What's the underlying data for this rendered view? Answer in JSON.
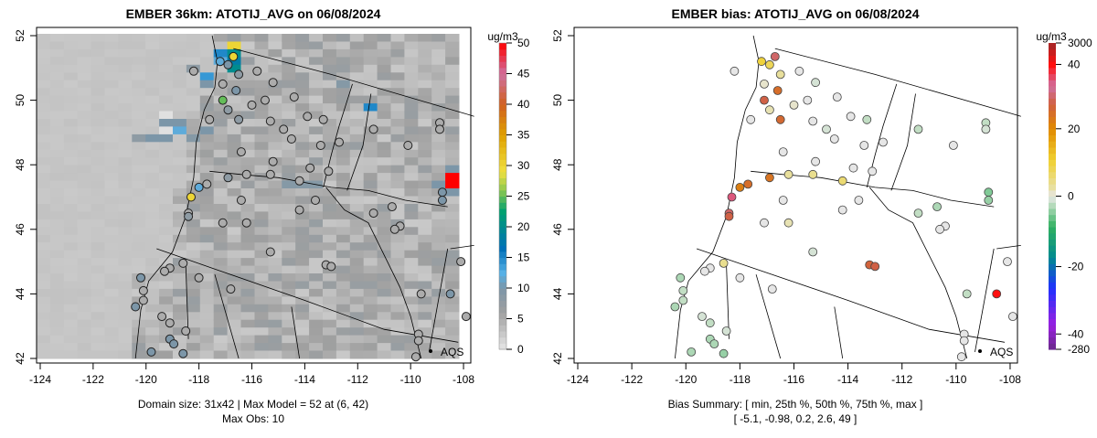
{
  "chart_data": [
    {
      "type": "heatmap",
      "title": "EMBER 36km: ATOTIJ_AVG on 06/08/2024",
      "xlim": [
        -124.5,
        -107.8
      ],
      "ylim": [
        41.8,
        52.2
      ],
      "x_ticks": [
        "-124",
        "-122",
        "-120",
        "-118",
        "-116",
        "-114",
        "-112",
        "-110",
        "-108"
      ],
      "y_ticks": [
        "42",
        "44",
        "46",
        "48",
        "50",
        "52"
      ],
      "colorbar": {
        "unit": "ug/m3",
        "range": [
          0,
          50
        ],
        "ticks": [
          "0",
          "5",
          "10",
          "15",
          "20",
          "25",
          "30",
          "35",
          "40",
          "45",
          "50"
        ]
      },
      "legend": {
        "label": "AQS"
      },
      "footer": [
        "Domain size: 31x42 | Max Model = 52 at (6, 42)",
        "Max Obs: 10"
      ]
    },
    {
      "type": "scatter",
      "title": "EMBER bias: ATOTIJ_AVG on 06/08/2024",
      "xlim": [
        -124.5,
        -107.8
      ],
      "ylim": [
        41.8,
        52.2
      ],
      "x_ticks": [
        "-124",
        "-122",
        "-120",
        "-118",
        "-116",
        "-114",
        "-112",
        "-110",
        "-108"
      ],
      "y_ticks": [
        "42",
        "44",
        "46",
        "48",
        "50",
        "52"
      ],
      "colorbar": {
        "unit": "ug/m3",
        "ticks": [
          "-280",
          "-40",
          "-20",
          "0",
          "20",
          "40",
          "3000"
        ]
      },
      "legend": {
        "label": "AQS"
      },
      "footer": [
        "Bias Summary: [ min, 25th %, 50th %, 75th %, max ]",
        "[ -5.1,   -0.98,   0.2,   2.6,   49 ]"
      ]
    }
  ],
  "stations": [
    [
      -116.7,
      51.35,
      30,
      30
    ],
    [
      -116.9,
      51.1,
      10,
      8
    ],
    [
      -117.2,
      51.2,
      12,
      10
    ],
    [
      -116.5,
      50.8,
      8,
      3
    ],
    [
      -116.6,
      50.3,
      10,
      25
    ],
    [
      -117.1,
      50.0,
      25,
      28
    ],
    [
      -116.9,
      49.7,
      8,
      2
    ],
    [
      -116.5,
      49.4,
      8,
      26
    ],
    [
      -118.2,
      50.9,
      5,
      0
    ],
    [
      -117.1,
      50.5,
      5,
      1
    ],
    [
      -115.8,
      50.9,
      5,
      0
    ],
    [
      -115.2,
      50.55,
      5,
      -1
    ],
    [
      -114.4,
      50.1,
      5,
      0
    ],
    [
      -115.5,
      50.0,
      5,
      0
    ],
    [
      -116.0,
      49.85,
      5,
      1
    ],
    [
      -117.6,
      49.4,
      5,
      0
    ],
    [
      -115.3,
      49.35,
      5,
      0
    ],
    [
      -114.8,
      49.1,
      5,
      -1
    ],
    [
      -113.9,
      49.5,
      5,
      0
    ],
    [
      -113.3,
      49.4,
      5,
      -2
    ],
    [
      -112.7,
      48.7,
      5,
      0
    ],
    [
      -114.5,
      48.8,
      5,
      0
    ],
    [
      -113.4,
      48.6,
      5,
      0
    ],
    [
      -111.4,
      49.1,
      5,
      -2
    ],
    [
      -108.9,
      49.3,
      5,
      -2
    ],
    [
      -108.9,
      49.1,
      5,
      -1
    ],
    [
      -110.1,
      48.6,
      5,
      0
    ],
    [
      -116.4,
      48.4,
      5,
      0
    ],
    [
      -115.2,
      48.1,
      5,
      0
    ],
    [
      -113.8,
      47.9,
      5,
      0
    ],
    [
      -113.1,
      47.8,
      5,
      0
    ],
    [
      -116.2,
      47.7,
      5,
      3
    ],
    [
      -118.0,
      47.3,
      12,
      22
    ],
    [
      -118.3,
      47.0,
      30,
      35
    ],
    [
      -117.7,
      47.4,
      5,
      25
    ],
    [
      -116.9,
      47.6,
      8,
      24
    ],
    [
      -115.3,
      47.7,
      5,
      4
    ],
    [
      -114.2,
      47.5,
      5,
      6
    ],
    [
      -116.4,
      46.9,
      5,
      0
    ],
    [
      -118.4,
      46.5,
      5,
      30
    ],
    [
      -118.4,
      46.4,
      8,
      28
    ],
    [
      -117.1,
      46.2,
      5,
      0
    ],
    [
      -116.2,
      46.2,
      5,
      2
    ],
    [
      -114.2,
      46.6,
      5,
      0
    ],
    [
      -113.6,
      46.9,
      5,
      0
    ],
    [
      -110.7,
      46.7,
      5,
      -3
    ],
    [
      -111.4,
      46.5,
      5,
      -2
    ],
    [
      -110.4,
      46.1,
      5,
      0
    ],
    [
      -108.8,
      47.15,
      10,
      -5
    ],
    [
      -108.8,
      46.9,
      10,
      -4
    ],
    [
      -110.6,
      46.0,
      5,
      0
    ],
    [
      -115.3,
      45.3,
      5,
      -1
    ],
    [
      -113.2,
      44.9,
      5,
      27
    ],
    [
      -113.0,
      44.85,
      5,
      28
    ],
    [
      -119.1,
      44.8,
      5,
      0
    ],
    [
      -118.6,
      44.95,
      5,
      4
    ],
    [
      -119.3,
      44.7,
      5,
      0
    ],
    [
      -120.2,
      44.5,
      10,
      -3
    ],
    [
      -118.0,
      44.5,
      5,
      0
    ],
    [
      -120.1,
      44.1,
      5,
      -2
    ],
    [
      -116.8,
      44.15,
      5,
      0
    ],
    [
      -120.1,
      43.8,
      5,
      -2
    ],
    [
      -119.4,
      43.3,
      5,
      -1
    ],
    [
      -119.1,
      43.1,
      5,
      -2
    ],
    [
      -120.4,
      43.6,
      10,
      -3
    ],
    [
      -118.5,
      42.85,
      5,
      -1
    ],
    [
      -119.1,
      42.6,
      10,
      -3
    ],
    [
      -118.95,
      42.45,
      10,
      -3
    ],
    [
      -119.8,
      42.2,
      10,
      -3
    ],
    [
      -118.6,
      42.15,
      10,
      -4
    ],
    [
      -109.6,
      44.0,
      5,
      -2
    ],
    [
      -108.5,
      44.0,
      10,
      49
    ],
    [
      -109.7,
      42.75,
      5,
      0
    ],
    [
      -109.7,
      42.55,
      5,
      0
    ],
    [
      -108.1,
      45.0,
      5,
      0
    ],
    [
      -109.8,
      42.05,
      5,
      0
    ],
    [
      -107.9,
      43.3,
      5,
      0
    ]
  ]
}
